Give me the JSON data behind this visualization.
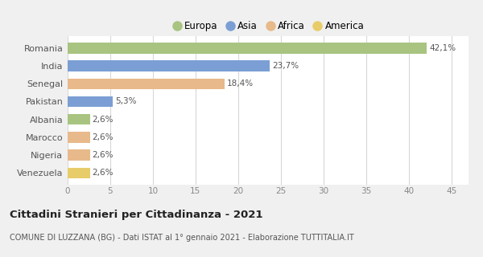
{
  "categories": [
    "Romania",
    "India",
    "Senegal",
    "Pakistan",
    "Albania",
    "Marocco",
    "Nigeria",
    "Venezuela"
  ],
  "values": [
    42.1,
    23.7,
    18.4,
    5.3,
    2.6,
    2.6,
    2.6,
    2.6
  ],
  "labels": [
    "42,1%",
    "23,7%",
    "18,4%",
    "5,3%",
    "2,6%",
    "2,6%",
    "2,6%",
    "2,6%"
  ],
  "colors": [
    "#a8c480",
    "#7b9fd4",
    "#e8b98a",
    "#7b9fd4",
    "#a8c480",
    "#e8b98a",
    "#e8b98a",
    "#e8cc6a"
  ],
  "legend_labels": [
    "Europa",
    "Asia",
    "Africa",
    "America"
  ],
  "legend_colors": [
    "#a8c480",
    "#7b9fd4",
    "#e8b98a",
    "#e8cc6a"
  ],
  "title": "Cittadini Stranieri per Cittadinanza - 2021",
  "subtitle": "COMUNE DI LUZZANA (BG) - Dati ISTAT al 1° gennaio 2021 - Elaborazione TUTTITALIA.IT",
  "xlim": [
    0,
    47
  ],
  "xticks": [
    0,
    5,
    10,
    15,
    20,
    25,
    30,
    35,
    40,
    45
  ],
  "background_color": "#f0f0f0",
  "plot_bg_color": "#ffffff",
  "grid_color": "#d8d8d8"
}
